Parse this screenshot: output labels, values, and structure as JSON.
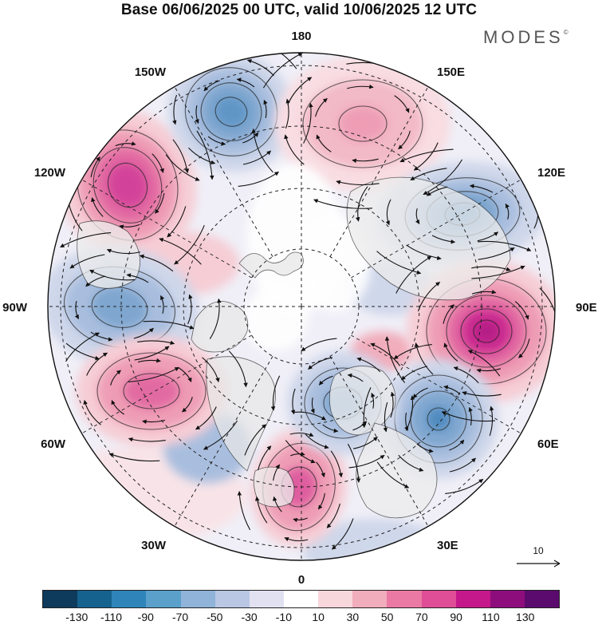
{
  "title": "Base 06/06/2025 00 UTC, valid 10/06/2025 12 UTC",
  "brand": "MODES",
  "brand_mark": "©",
  "longitude_labels": {
    "top": "180",
    "bottom": "0",
    "left": "90W",
    "right": "90E",
    "upper_left": "150W",
    "upper_right": "150E",
    "mid_upper_left": "120W",
    "mid_upper_right": "120E",
    "mid_lower_left": "60W",
    "mid_lower_right": "60E",
    "lower_left": "30W",
    "lower_right": "30E"
  },
  "reference_vector": {
    "value": "10"
  },
  "colorbar": {
    "colors": [
      "#0e3a5c",
      "#16628e",
      "#2f85b9",
      "#5aa0cb",
      "#8fb3d9",
      "#b9c6e4",
      "#e1e1f1",
      "#ffffff",
      "#f8d7dc",
      "#f1adbc",
      "#ea7aa3",
      "#df4e96",
      "#c5188a",
      "#8e0d7c",
      "#5b0b6e"
    ],
    "tick_labels": [
      "-130",
      "-110",
      "-90",
      "-70",
      "-50",
      "-30",
      "-10",
      "10",
      "30",
      "50",
      "70",
      "90",
      "110",
      "130"
    ]
  },
  "anomaly_centers": [
    {
      "name": "beaufort-high",
      "sign": "positive",
      "colors": [
        "#f6cdd5",
        "#ee9db5",
        "#e26aa2",
        "#d3439a"
      ]
    },
    {
      "name": "aleutian-low",
      "sign": "negative",
      "colors": [
        "#cfd7ea",
        "#a9bede",
        "#7ea6cf",
        "#5f95c6"
      ]
    },
    {
      "name": "north-pacific-high",
      "sign": "positive",
      "colors": [
        "#f8dde2",
        "#f2b9c6",
        "#ee9db5"
      ]
    },
    {
      "name": "siberia-low",
      "sign": "negative",
      "colors": [
        "#cfd7ea",
        "#a9bede",
        "#7ea6cf",
        "#5a91c3"
      ]
    },
    {
      "name": "ural-high",
      "sign": "positive",
      "colors": [
        "#f6cdd5",
        "#ee9db5",
        "#e26aa2",
        "#cc2f91",
        "#b61b86"
      ]
    },
    {
      "name": "europe-low",
      "sign": "negative",
      "colors": [
        "#cfd7ea",
        "#a9bede",
        "#7ea6cf",
        "#4d89bf"
      ]
    },
    {
      "name": "hudson-low",
      "sign": "negative",
      "colors": [
        "#cfd7ea",
        "#a9bede",
        "#7ea6cf"
      ]
    },
    {
      "name": "atlantic-high",
      "sign": "positive",
      "colors": [
        "#f6cdd5",
        "#ee9db5",
        "#e26aa2"
      ]
    },
    {
      "name": "greenland-high",
      "sign": "positive",
      "colors": [
        "#f6cdd5",
        "#ee9db5",
        "#de5d9f"
      ]
    },
    {
      "name": "scandinavia-low",
      "sign": "negative",
      "colors": [
        "#cfd7ea",
        "#a9bede",
        "#7ea6cf"
      ]
    }
  ]
}
